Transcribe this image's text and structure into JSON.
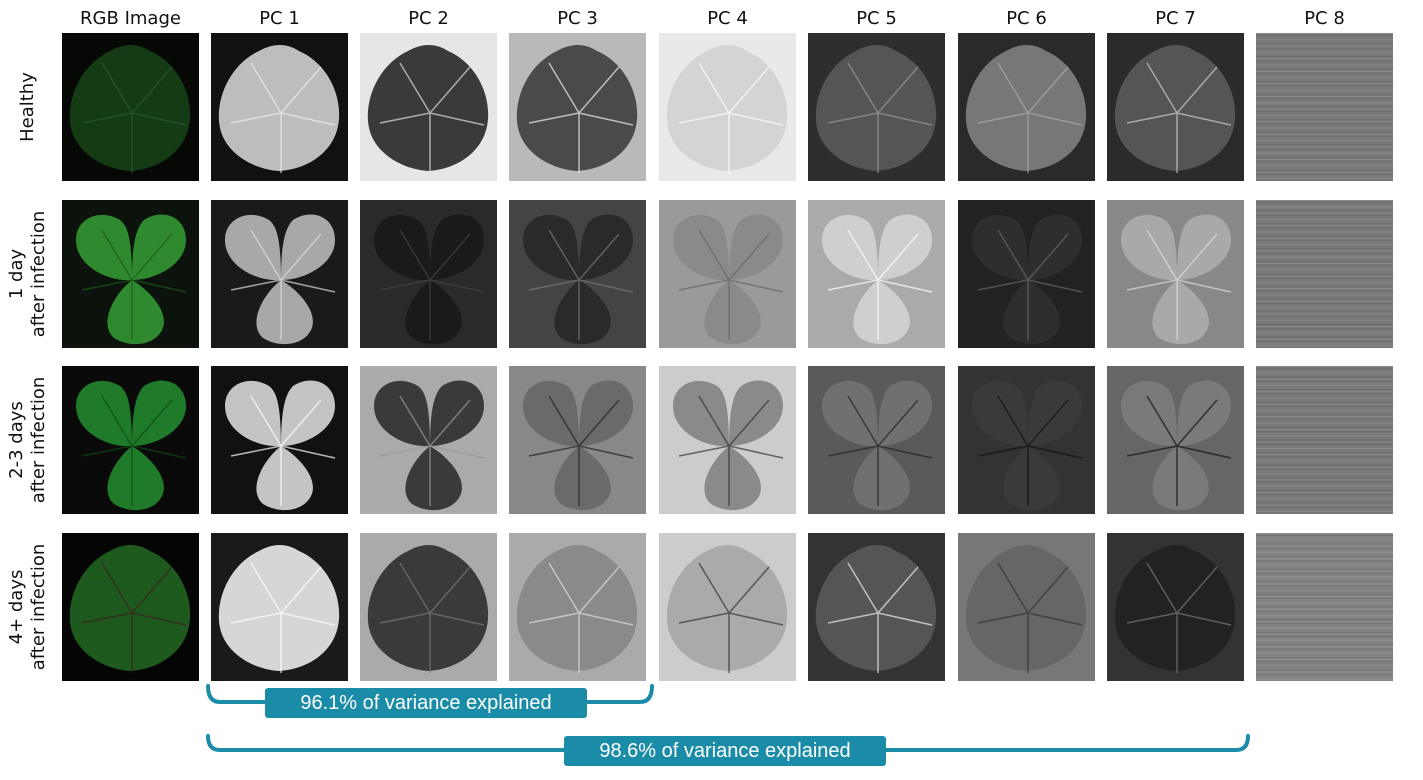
{
  "columns": [
    "RGB Image",
    "PC 1",
    "PC 2",
    "PC 3",
    "PC 4",
    "PC 5",
    "PC 6",
    "PC 7",
    "PC 8"
  ],
  "rows": [
    {
      "lines": [
        "Healthy"
      ]
    },
    {
      "lines": [
        "1 day",
        "after infection"
      ]
    },
    {
      "lines": [
        "2-3 days",
        "after infection"
      ]
    },
    {
      "lines": [
        "4+ days",
        "after infection"
      ]
    }
  ],
  "variance_brackets": [
    {
      "label": "96.1% of variance explained"
    },
    {
      "label": "98.6% of variance explained"
    }
  ],
  "colors": {
    "accent": "#1b8ca8"
  }
}
